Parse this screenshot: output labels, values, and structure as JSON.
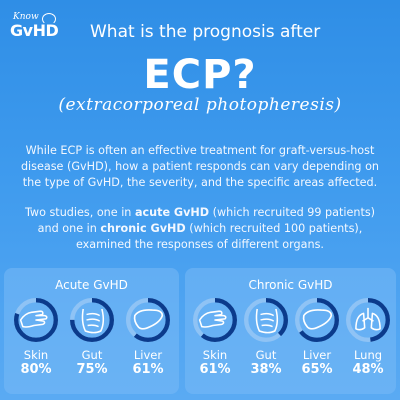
{
  "logo": {
    "know": "Know",
    "gvhd": "GvHD"
  },
  "header": {
    "question": "What is the prognosis after",
    "ecp": "ECP?",
    "ecp_full": "(extracorporeal photopheresis)"
  },
  "paragraphs": {
    "p1": "While ECP is often an effective treatment for graft-versus-host disease (GvHD), how a patient responds can vary depending on the type of GvHD, the severity, and the specific areas affected.",
    "p2_a": "Two studies, one in ",
    "p2_b": "acute GvHD",
    "p2_c": " (which recruited 99 patients) and one in ",
    "p2_d": "chronic GvHD",
    "p2_e": " (which recruited 100 patients), examined the responses of different organs."
  },
  "acute": {
    "title": "Acute GvHD",
    "organs": [
      {
        "label": "Skin",
        "pct": "80%",
        "value": 0.8,
        "icon": "hand-icon"
      },
      {
        "label": "Gut",
        "pct": "75%",
        "value": 0.75,
        "icon": "gut-icon"
      },
      {
        "label": "Liver",
        "pct": "61%",
        "value": 0.61,
        "icon": "liver-icon"
      }
    ]
  },
  "chronic": {
    "title": "Chronic GvHD",
    "organs": [
      {
        "label": "Skin",
        "pct": "61%",
        "value": 0.61,
        "icon": "hand-icon"
      },
      {
        "label": "Gut",
        "pct": "38%",
        "value": 0.38,
        "icon": "gut-icon"
      },
      {
        "label": "Liver",
        "pct": "65%",
        "value": 0.65,
        "icon": "liver-icon"
      },
      {
        "label": "Lung",
        "pct": "48%",
        "value": 0.48,
        "icon": "lung-icon"
      }
    ]
  },
  "colors": {
    "ring": "#0b3b8c",
    "track": "#8fc3f5",
    "panel": "#78b9f5"
  }
}
